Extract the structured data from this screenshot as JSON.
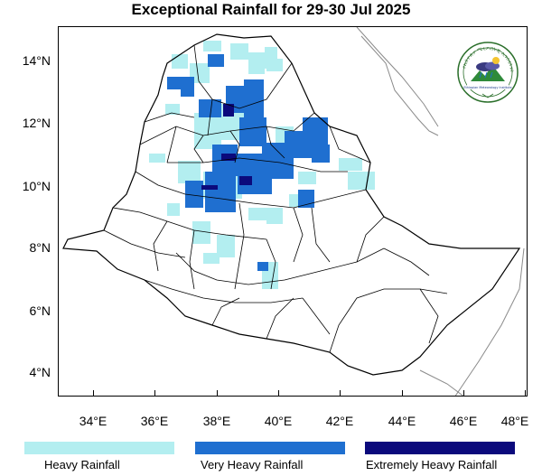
{
  "title": "Exceptional Rainfall for 29-30 Jul 2025",
  "lat_labels": [
    "14°N",
    "12°N",
    "10°N",
    "8°N",
    "6°N",
    "4°N"
  ],
  "lon_labels": [
    "34°E",
    "36°E",
    "38°E",
    "40°E",
    "42°E",
    "44°E",
    "46°E",
    "48°E"
  ],
  "legend": [
    {
      "label": "Heavy Rainfall",
      "color": "#b3eef0"
    },
    {
      "label": "Very Heavy Rainfall",
      "color": "#1f6fd0"
    },
    {
      "label": "Extremely Heavy Rainfall",
      "color": "#0b0a7c"
    }
  ],
  "colors": {
    "heavy": "#b3eef0",
    "very_heavy": "#1f6fd0",
    "extreme": "#0b0a7c",
    "boundary": "#000000",
    "neighbor": "#8a8a8a"
  },
  "logo": {
    "arc_text": "የኢትዮጵያ ሚቲዎሮሎጂ ኢንስቲትዩት",
    "caption": "Ethiopian Meteorology Institute",
    "icon": "cloud-rain-mountain-icon"
  }
}
